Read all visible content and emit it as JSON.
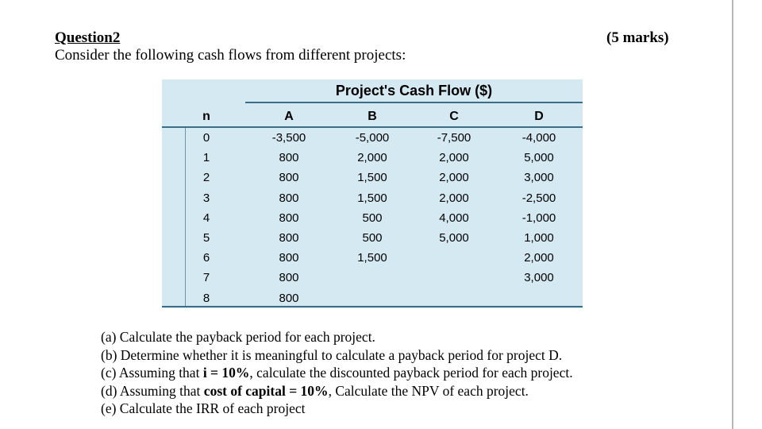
{
  "question": {
    "title": "Question2",
    "marks": "(5 marks)",
    "intro": "Consider the following cash flows from different projects:"
  },
  "table": {
    "title": "Project's Cash Flow ($)",
    "headers": [
      "n",
      "A",
      "B",
      "C",
      "D"
    ],
    "rows": [
      [
        "0",
        "-3,500",
        "-5,000",
        "-7,500",
        "-4,000"
      ],
      [
        "1",
        "800",
        "2,000",
        "2,000",
        "5,000"
      ],
      [
        "2",
        "800",
        "1,500",
        "2,000",
        "3,000"
      ],
      [
        "3",
        "800",
        "1,500",
        "2,000",
        "-2,500"
      ],
      [
        "4",
        "800",
        "500",
        "4,000",
        "-1,000"
      ],
      [
        "5",
        "800",
        "500",
        "5,000",
        "1,000"
      ],
      [
        "6",
        "800",
        "1,500",
        "",
        "2,000"
      ],
      [
        "7",
        "800",
        "",
        "",
        "3,000"
      ],
      [
        "8",
        "800",
        "",
        "",
        ""
      ]
    ]
  },
  "parts": {
    "a": "(a) Calculate the payback period for each project.",
    "b": "(b) Determine whether it is meaningful to calculate a payback period for project D.",
    "c_pre": "(c) Assuming that ",
    "c_bold": "i = 10%",
    "c_post": ", calculate the discounted payback period for each project.",
    "d_pre": "(d) Assuming that ",
    "d_bold": "cost of capital = 10%",
    "d_post": ", Calculate the NPV of each project.",
    "e": "(e) Calculate the IRR of each project"
  }
}
